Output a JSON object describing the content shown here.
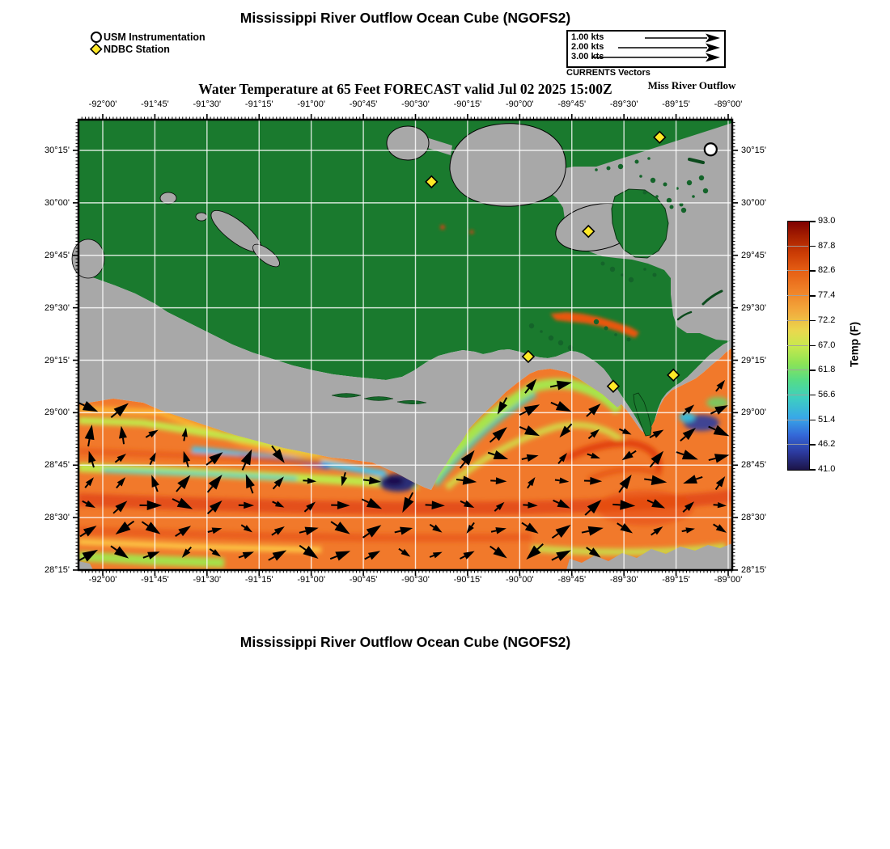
{
  "titles": {
    "top": "Mississippi River Outflow Ocean Cube (NGOFS2)",
    "subtitle": "Water Temperature at 65 Feet FORECAST valid Jul 02 2025 15:00Z",
    "subtitle_right": "Miss River Outflow",
    "bottom": "Mississippi River Outflow Ocean Cube (NGOFS2)"
  },
  "legend": {
    "items": [
      {
        "marker": "circle",
        "label": "USM Instrumentation"
      },
      {
        "marker": "diamond",
        "label": "NDBC Station"
      }
    ]
  },
  "vector_legend": {
    "rows": [
      {
        "label": "1.00 kts",
        "speed_kts": 1.0
      },
      {
        "label": "2.00 kts",
        "speed_kts": 2.0
      },
      {
        "label": "3.00 kts",
        "speed_kts": 3.0
      }
    ],
    "caption": "CURRENTS Vectors"
  },
  "axes": {
    "x_ticks": [
      "-92°00'",
      "-91°45'",
      "-91°30'",
      "-91°15'",
      "-91°00'",
      "-90°45'",
      "-90°30'",
      "-90°15'",
      "-90°00'",
      "-89°45'",
      "-89°30'",
      "-89°15'",
      "-89°00'"
    ],
    "y_ticks": [
      "30°15'",
      "30°00'",
      "29°45'",
      "29°30'",
      "29°15'",
      "29°00'",
      "28°45'",
      "28°30'",
      "28°15'"
    ]
  },
  "colorbar": {
    "label": "Temp (F)",
    "ticks": [
      "93.0",
      "87.8",
      "82.6",
      "77.4",
      "72.2",
      "67.0",
      "61.8",
      "56.6",
      "51.4",
      "46.2",
      "41.0"
    ]
  },
  "chart_data": {
    "type": "heatmap",
    "subtype": "geographic model field with current-vector overlay",
    "title": "Water Temperature at 65 Feet FORECAST valid Jul 02 2025 15:00Z",
    "region": "Miss River Outflow",
    "model": "NGOFS2",
    "lon_range_deg": [
      -92.117,
      -88.983
    ],
    "lat_range_deg": [
      28.25,
      30.4
    ],
    "grid_interval_min": 15,
    "temp_scale_F": [
      41.0,
      46.2,
      51.4,
      56.6,
      61.8,
      67.0,
      72.2,
      77.4,
      82.6,
      87.8,
      93.0
    ],
    "temp_units": "F",
    "currents_legend_kts": [
      1.0,
      2.0,
      3.0
    ],
    "field_summary": "Offshore Gulf water mostly 80-86F (orange) with warm 86-90F bands, yellow-green 67-74F streaks along shelf, cyan-blue 50-60F filaments, and a cold 41-48F (navy) patch near -90°30' 28°45'; warm red plume along Breton Sound coast near -89°40' 29°30'",
    "stations": {
      "usm": [
        {
          "name": "USM Instrumentation",
          "lon": -89.08,
          "lat": 30.25,
          "fx": 0.967,
          "fy": 0.066
        }
      ],
      "ndbc": [
        {
          "lon": -89.33,
          "lat": 30.31,
          "fx": 0.889,
          "fy": 0.039
        },
        {
          "lon": -90.42,
          "lat": 30.1,
          "fx": 0.54,
          "fy": 0.138
        },
        {
          "lon": -89.67,
          "lat": 29.87,
          "fx": 0.78,
          "fy": 0.248
        },
        {
          "lon": -89.96,
          "lat": 29.27,
          "fx": 0.688,
          "fy": 0.526
        },
        {
          "lon": -89.55,
          "lat": 29.13,
          "fx": 0.818,
          "fy": 0.592
        },
        {
          "lon": -89.26,
          "lat": 29.18,
          "fx": 0.91,
          "fy": 0.567
        }
      ]
    }
  },
  "colors": {
    "land_green": "#1a7a2e",
    "island_green": "#14642a",
    "water_mask_gray": "#a8a8a8",
    "ocean_base_orange": "#f1792b",
    "arrow_black": "#000000",
    "station_yellow": "#ffe927",
    "grid_white": "#ffffff"
  }
}
